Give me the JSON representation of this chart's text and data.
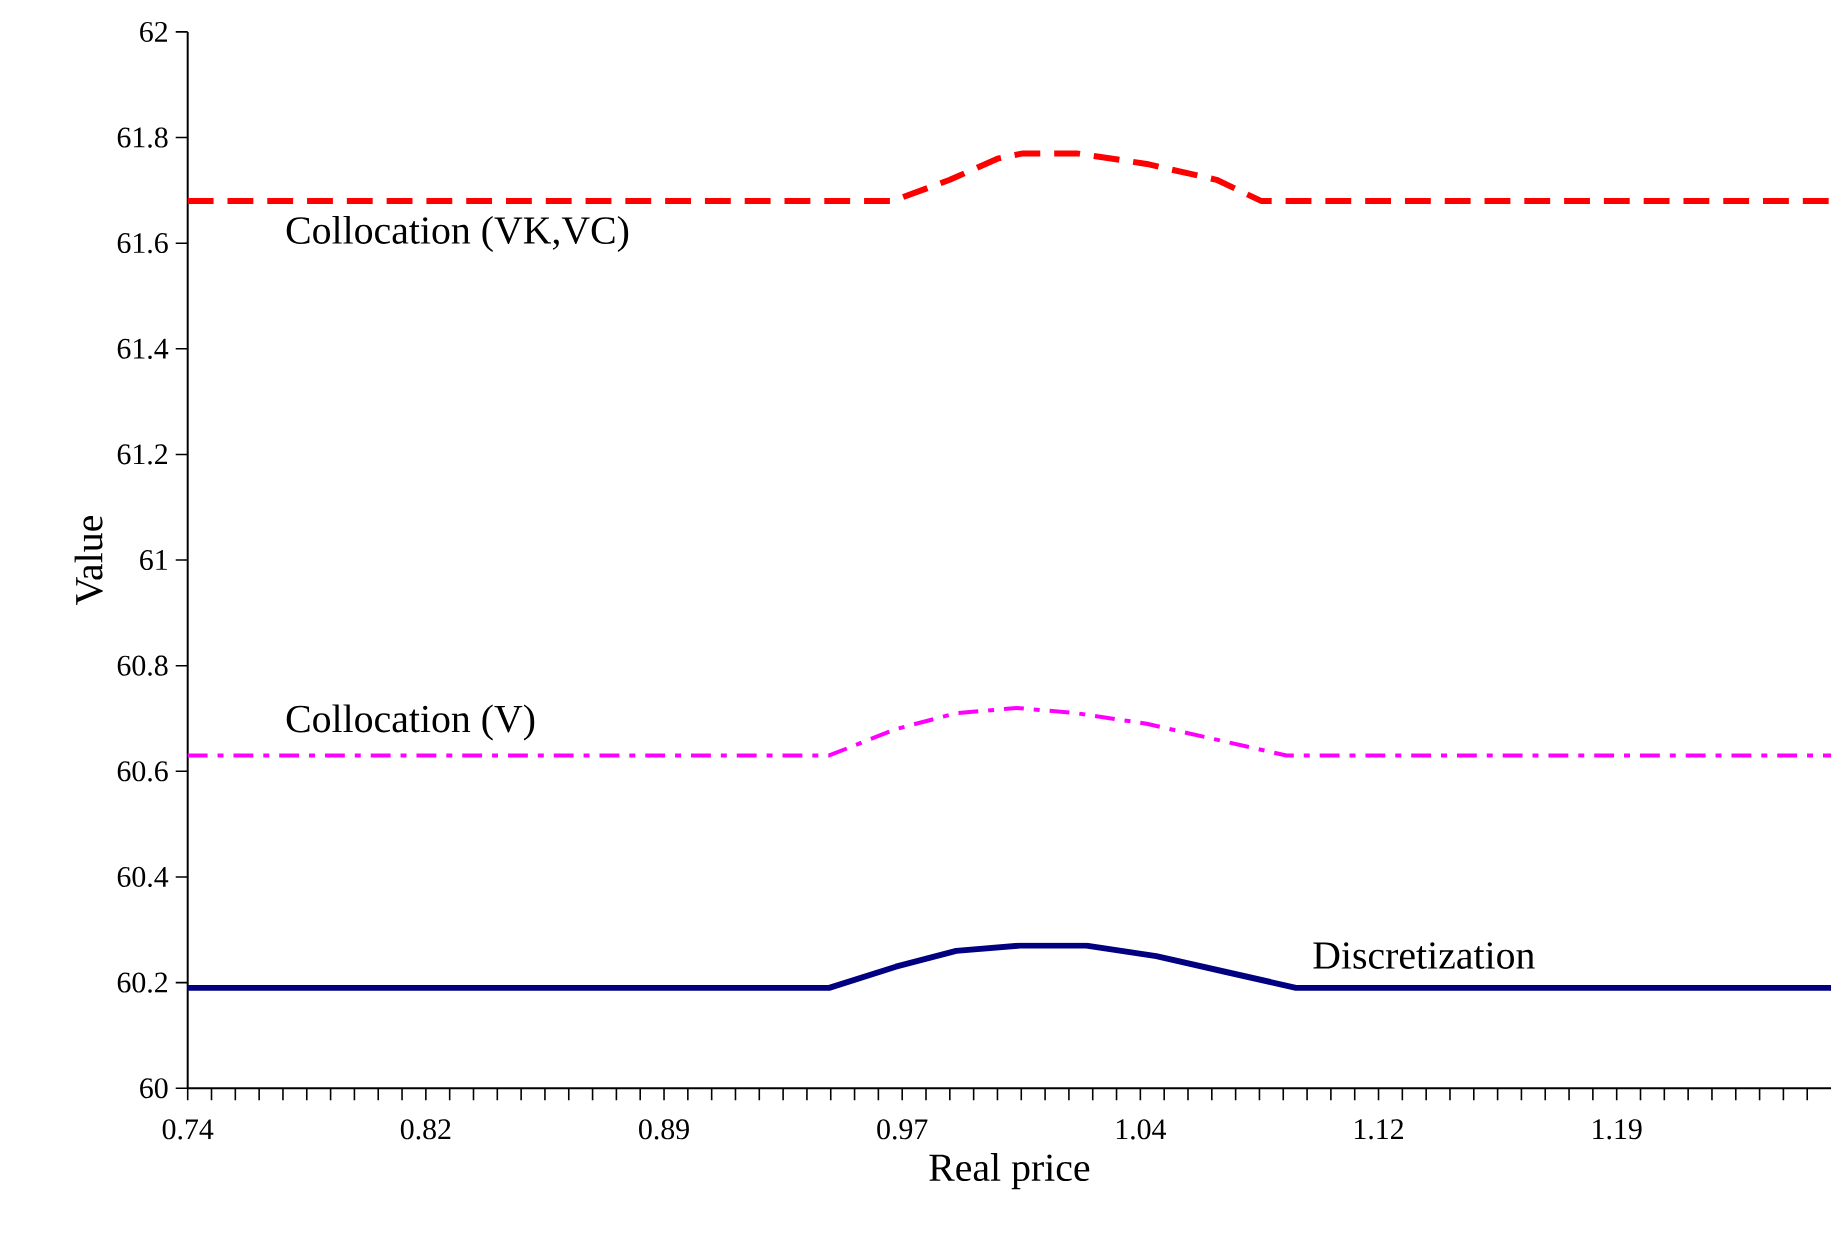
{
  "chart_data": {
    "type": "line",
    "xlabel": "Real price",
    "ylabel": "Value",
    "xlim": [
      0.74,
      1.2575
    ],
    "ylim": [
      60,
      62
    ],
    "yticks": [
      60,
      60.2,
      60.4,
      60.6,
      60.8,
      61,
      61.2,
      61.4,
      61.6,
      61.8,
      62
    ],
    "xticks": [
      0.74,
      {
        "value": 0.7475,
        "label": null
      },
      {
        "value": 0.755,
        "label": null
      },
      {
        "value": 0.7625,
        "label": null
      },
      {
        "value": 0.77,
        "label": null
      },
      {
        "value": 0.7775,
        "label": null
      },
      {
        "value": 0.785,
        "label": null
      },
      {
        "value": 0.7925,
        "label": null
      },
      {
        "value": 0.8,
        "label": null
      },
      {
        "value": 0.8075,
        "label": null
      },
      {
        "value": 0.815,
        "label": "0.82"
      },
      {
        "value": 0.8225,
        "label": null
      },
      {
        "value": 0.83,
        "label": null
      },
      {
        "value": 0.8375,
        "label": null
      },
      {
        "value": 0.845,
        "label": null
      },
      {
        "value": 0.8525,
        "label": null
      },
      {
        "value": 0.86,
        "label": null
      },
      {
        "value": 0.8675,
        "label": null
      },
      {
        "value": 0.875,
        "label": null
      },
      {
        "value": 0.8825,
        "label": null
      },
      0.89,
      {
        "value": 0.8975,
        "label": null
      },
      {
        "value": 0.905,
        "label": null
      },
      {
        "value": 0.9125,
        "label": null
      },
      {
        "value": 0.92,
        "label": null
      },
      {
        "value": 0.9275,
        "label": null
      },
      {
        "value": 0.935,
        "label": null
      },
      {
        "value": 0.9425,
        "label": null
      },
      {
        "value": 0.95,
        "label": null
      },
      {
        "value": 0.9575,
        "label": null
      },
      {
        "value": 0.965,
        "label": "0.97"
      },
      {
        "value": 0.9725,
        "label": null
      },
      {
        "value": 0.98,
        "label": null
      },
      {
        "value": 0.9875,
        "label": null
      },
      {
        "value": 0.995,
        "label": null
      },
      {
        "value": 1.0025,
        "label": null
      },
      {
        "value": 1.01,
        "label": null
      },
      {
        "value": 1.0175,
        "label": null
      },
      {
        "value": 1.025,
        "label": null
      },
      {
        "value": 1.0325,
        "label": null
      },
      1.04,
      {
        "value": 1.0475,
        "label": null
      },
      {
        "value": 1.055,
        "label": null
      },
      {
        "value": 1.0625,
        "label": null
      },
      {
        "value": 1.07,
        "label": null
      },
      {
        "value": 1.0775,
        "label": null
      },
      {
        "value": 1.085,
        "label": null
      },
      {
        "value": 1.0925,
        "label": null
      },
      {
        "value": 1.1,
        "label": null
      },
      {
        "value": 1.1075,
        "label": null
      },
      {
        "value": 1.115,
        "label": "1.12"
      },
      {
        "value": 1.1225,
        "label": null
      },
      {
        "value": 1.13,
        "label": null
      },
      {
        "value": 1.1375,
        "label": null
      },
      {
        "value": 1.145,
        "label": null
      },
      {
        "value": 1.1525,
        "label": null
      },
      {
        "value": 1.16,
        "label": null
      },
      {
        "value": 1.1675,
        "label": null
      },
      {
        "value": 1.175,
        "label": null
      },
      {
        "value": 1.1825,
        "label": null
      },
      1.19,
      {
        "value": 1.1975,
        "label": null
      },
      {
        "value": 1.205,
        "label": null
      },
      {
        "value": 1.2125,
        "label": null
      },
      {
        "value": 1.22,
        "label": null
      },
      {
        "value": 1.2275,
        "label": null
      },
      {
        "value": 1.235,
        "label": null
      },
      {
        "value": 1.2425,
        "label": null
      },
      {
        "value": 1.25,
        "label": null
      }
    ],
    "grid": false,
    "legend": false,
    "marker": "none",
    "series": [
      {
        "name": "Collocation (VK,VC)",
        "color": "#ff0000",
        "line_style": "dashed",
        "x": [
          0.74,
          0.962,
          0.98,
          0.995,
          1.003,
          1.02,
          1.042,
          1.064,
          1.078,
          1.2575
        ],
        "values": [
          61.68,
          61.68,
          61.72,
          61.76,
          61.77,
          61.77,
          61.75,
          61.72,
          61.68,
          61.68
        ]
      },
      {
        "name": "Collocation (V)",
        "color": "#ff00ff",
        "line_style": "dashdot",
        "x": [
          0.74,
          0.942,
          0.963,
          0.982,
          1.001,
          1.02,
          1.042,
          1.064,
          1.086,
          1.2575
        ],
        "values": [
          60.63,
          60.63,
          60.68,
          60.71,
          60.72,
          60.71,
          60.69,
          60.66,
          60.63,
          60.63
        ]
      },
      {
        "name": "Discretization",
        "color": "#000080",
        "line_style": "solid",
        "x": [
          0.74,
          0.942,
          0.963,
          0.982,
          1.002,
          1.023,
          1.045,
          1.067,
          1.089,
          1.2575
        ],
        "values": [
          60.19,
          60.19,
          60.23,
          60.26,
          60.27,
          60.27,
          60.25,
          60.22,
          60.19,
          60.19
        ]
      }
    ]
  }
}
